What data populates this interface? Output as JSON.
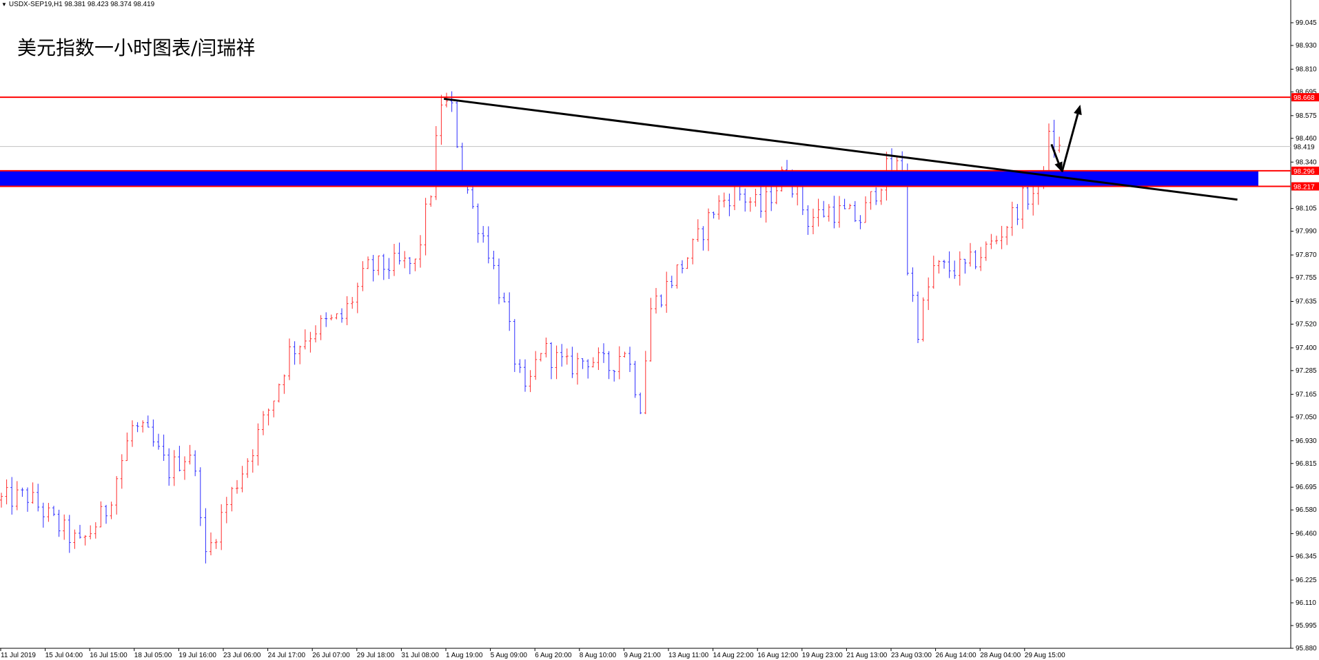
{
  "header": {
    "symbol": "USDX-SEP19,H1",
    "ohlc": "98.381 98.423 98.374 98.419",
    "menu_icon": "triangle-down-icon"
  },
  "title": "美元指数一小时图表/闫瑞祥",
  "colors": {
    "bull": "#ff2a2a",
    "bear": "#2a2aff",
    "band": "#0000ff",
    "resistance": "#ff0000",
    "trendline": "#000000",
    "arrow": "#000000",
    "tag_red": "#ff0000",
    "current_price_line": "#c0c0c0"
  },
  "chart_data": {
    "type": "candlestick",
    "timeframe": "H1",
    "ylim": [
      95.88,
      99.16
    ],
    "y_ticks": [
      "99.045",
      "98.930",
      "98.810",
      "98.695",
      "98.575",
      "98.460",
      "98.340",
      "98.105",
      "97.990",
      "97.870",
      "97.755",
      "97.635",
      "97.520",
      "97.400",
      "97.285",
      "97.165",
      "97.050",
      "96.930",
      "96.815",
      "96.695",
      "96.580",
      "96.460",
      "96.345",
      "96.225",
      "96.110",
      "95.995",
      "95.880"
    ],
    "x_labels": [
      "11 Jul 2019",
      "15 Jul 04:00",
      "16 Jul 15:00",
      "18 Jul 05:00",
      "19 Jul 16:00",
      "23 Jul 06:00",
      "24 Jul 17:00",
      "26 Jul 07:00",
      "29 Jul 18:00",
      "31 Jul 08:00",
      "1 Aug 19:00",
      "5 Aug 09:00",
      "6 Aug 20:00",
      "8 Aug 10:00",
      "9 Aug 21:00",
      "13 Aug 11:00",
      "14 Aug 22:00",
      "16 Aug 12:00",
      "19 Aug 23:00",
      "21 Aug 13:00",
      "23 Aug 03:00",
      "26 Aug 14:00",
      "28 Aug 04:00",
      "29 Aug 15:00"
    ],
    "price_path": [
      [
        0,
        96.63
      ],
      [
        5,
        96.65
      ],
      [
        10,
        96.52
      ],
      [
        15,
        96.4
      ],
      [
        20,
        96.58
      ],
      [
        25,
        97.0
      ],
      [
        28,
        96.95
      ],
      [
        32,
        96.78
      ],
      [
        36,
        96.88
      ],
      [
        38,
        96.6
      ],
      [
        39,
        96.33
      ],
      [
        42,
        96.55
      ],
      [
        48,
        96.9
      ],
      [
        52,
        97.15
      ],
      [
        55,
        97.38
      ],
      [
        60,
        97.5
      ],
      [
        65,
        97.55
      ],
      [
        70,
        97.8
      ],
      [
        75,
        97.82
      ],
      [
        79,
        97.82
      ],
      [
        82,
        98.2
      ],
      [
        84,
        98.65
      ],
      [
        86,
        98.6
      ],
      [
        88,
        98.3
      ],
      [
        90,
        98.1
      ],
      [
        93,
        97.9
      ],
      [
        96,
        97.6
      ],
      [
        98,
        97.35
      ],
      [
        100,
        97.15
      ],
      [
        103,
        97.4
      ],
      [
        108,
        97.3
      ],
      [
        112,
        97.35
      ],
      [
        116,
        97.3
      ],
      [
        119,
        97.4
      ],
      [
        122,
        97.12
      ],
      [
        124,
        97.6
      ],
      [
        128,
        97.75
      ],
      [
        132,
        97.9
      ],
      [
        136,
        98.1
      ],
      [
        140,
        98.2
      ],
      [
        145,
        98.1
      ],
      [
        150,
        98.3
      ],
      [
        154,
        98.05
      ],
      [
        158,
        98.1
      ],
      [
        164,
        98.05
      ],
      [
        169,
        98.3
      ],
      [
        172,
        98.32
      ],
      [
        173,
        97.8
      ],
      [
        175,
        97.5
      ],
      [
        178,
        97.8
      ],
      [
        184,
        97.8
      ],
      [
        190,
        97.95
      ],
      [
        195,
        98.15
      ],
      [
        198,
        98.2
      ],
      [
        200,
        98.45
      ],
      [
        202,
        98.4
      ]
    ],
    "path_note": "",
    "levels": {
      "resistance": "98.668",
      "band_top": "98.296",
      "band_bottom": "98.217",
      "current": "98.419"
    },
    "resistance_value": 98.668,
    "band_top_value": 98.296,
    "band_bottom_value": 98.217,
    "current_value": 98.419,
    "trendline": {
      "from": [
        84.5,
        98.66
      ],
      "to": [
        236,
        98.15
      ]
    },
    "arrows": [
      {
        "from": [
          200.5,
          98.43
        ],
        "to": [
          202.5,
          98.29
        ]
      },
      {
        "from": [
          202.5,
          98.29
        ],
        "to": [
          206,
          98.63
        ]
      }
    ],
    "bar_count": 206
  }
}
